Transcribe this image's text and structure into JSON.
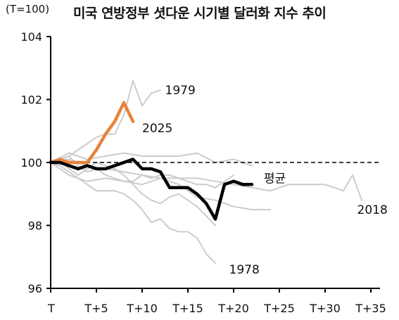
{
  "chart_data": {
    "type": "line",
    "title": "미국 연방정부 셧다운 시기별 달러화 지수 추이",
    "unit_label": "(T=100)",
    "xlabel": "",
    "ylabel": "",
    "xlim": [
      0,
      36
    ],
    "ylim": [
      96,
      104
    ],
    "y_ticks": [
      96,
      98,
      100,
      102,
      104
    ],
    "x_ticks": [
      {
        "t": 0,
        "label": "T"
      },
      {
        "t": 5,
        "label": "T+5"
      },
      {
        "t": 10,
        "label": "T+10"
      },
      {
        "t": 15,
        "label": "T+15"
      },
      {
        "t": 20,
        "label": "T+20"
      },
      {
        "t": 25,
        "label": "T+25"
      },
      {
        "t": 30,
        "label": "T+30"
      },
      {
        "t": 35,
        "label": "T+35"
      }
    ],
    "reference_line": {
      "y": 100,
      "style": "dashed"
    },
    "colors": {
      "highlight": "#e8823a",
      "average": "#000000",
      "past": "#cccccc",
      "axis": "#000000"
    },
    "series": [
      {
        "name": "1979",
        "role": "past",
        "label_pos": [
          12.5,
          102.3
        ],
        "x": [
          0,
          1,
          2,
          3,
          4,
          5,
          6,
          7,
          8,
          9,
          10,
          11,
          12
        ],
        "y": [
          100,
          100.1,
          100.2,
          100.4,
          100.6,
          100.8,
          100.9,
          100.9,
          101.5,
          102.6,
          101.8,
          102.2,
          102.3
        ]
      },
      {
        "name": "1978",
        "role": "past",
        "label_pos": [
          19.5,
          96.6
        ],
        "x": [
          0,
          1,
          2,
          3,
          4,
          5,
          6,
          7,
          8,
          9,
          10,
          11,
          12,
          13,
          14,
          15,
          16,
          17,
          18
        ],
        "y": [
          100,
          99.9,
          99.7,
          99.5,
          99.3,
          99.1,
          99.1,
          99.1,
          99.0,
          98.8,
          98.5,
          98.1,
          98.2,
          97.9,
          97.8,
          97.8,
          97.6,
          97.1,
          96.8
        ]
      },
      {
        "name": "2018",
        "role": "past",
        "label_pos": [
          33.5,
          98.5
        ],
        "x": [
          0,
          2,
          4,
          6,
          8,
          10,
          12,
          14,
          16,
          18,
          20,
          22,
          24,
          26,
          28,
          30,
          32,
          33,
          34
        ],
        "y": [
          100,
          100.1,
          99.9,
          99.8,
          99.7,
          99.6,
          99.5,
          99.5,
          99.5,
          99.4,
          99.3,
          99.2,
          99.1,
          99.3,
          99.3,
          99.3,
          99.1,
          99.6,
          98.8
        ]
      },
      {
        "name": "",
        "role": "past",
        "x": [
          0,
          2,
          4,
          6,
          8,
          10,
          12,
          14,
          16,
          18,
          20,
          22
        ],
        "y": [
          100,
          100.3,
          100.1,
          100.2,
          100.3,
          100.2,
          100.2,
          100.2,
          100.3,
          100.0,
          100.1,
          99.9
        ]
      },
      {
        "name": "",
        "role": "past",
        "x": [
          0,
          2,
          4,
          6,
          8,
          10,
          12,
          14,
          16,
          18,
          20,
          22,
          24
        ],
        "y": [
          100,
          99.6,
          99.4,
          99.5,
          99.4,
          99.3,
          99.5,
          99.3,
          98.9,
          98.8,
          98.6,
          98.5,
          98.5
        ]
      },
      {
        "name": "",
        "role": "past",
        "x": [
          0,
          1,
          2,
          3,
          4,
          5,
          6,
          7,
          8,
          9,
          10,
          11,
          12,
          13,
          14,
          15,
          16,
          17,
          18
        ],
        "y": [
          100,
          100.1,
          99.8,
          99.6,
          99.8,
          100.0,
          99.9,
          99.8,
          99.6,
          99.3,
          99.0,
          98.8,
          98.7,
          98.9,
          99.0,
          98.8,
          98.6,
          98.3,
          98.0
        ]
      },
      {
        "name": "",
        "role": "past",
        "x": [
          0,
          1,
          2,
          3,
          4,
          5,
          6,
          7,
          8,
          9,
          10,
          11,
          12,
          13,
          14,
          15,
          16,
          17,
          18,
          19,
          20
        ],
        "y": [
          100,
          100.1,
          100.2,
          99.9,
          99.7,
          99.8,
          99.6,
          99.5,
          99.4,
          99.4,
          99.6,
          99.5,
          99.6,
          99.6,
          99.5,
          99.4,
          99.3,
          99.3,
          99.2,
          99.4,
          99.6
        ]
      },
      {
        "name": "2025",
        "role": "highlight",
        "label_pos": [
          10.0,
          101.1
        ],
        "x": [
          0,
          1,
          2,
          3,
          4,
          5,
          6,
          7,
          8,
          9
        ],
        "y": [
          100,
          100.1,
          100.0,
          100.0,
          100.0,
          100.4,
          100.9,
          101.3,
          101.9,
          101.3
        ]
      },
      {
        "name": "평균",
        "role": "average",
        "label_pos": [
          23.3,
          99.5
        ],
        "x": [
          0,
          1,
          2,
          3,
          4,
          5,
          6,
          7,
          8,
          9,
          10,
          11,
          12,
          13,
          14,
          15,
          16,
          17,
          18,
          19,
          20,
          21,
          22
        ],
        "y": [
          100,
          100.0,
          99.9,
          99.8,
          99.9,
          99.8,
          99.8,
          99.9,
          100.0,
          100.1,
          99.8,
          99.8,
          99.7,
          99.2,
          99.2,
          99.2,
          99.0,
          98.7,
          98.2,
          99.3,
          99.4,
          99.3,
          99.3
        ]
      }
    ]
  }
}
